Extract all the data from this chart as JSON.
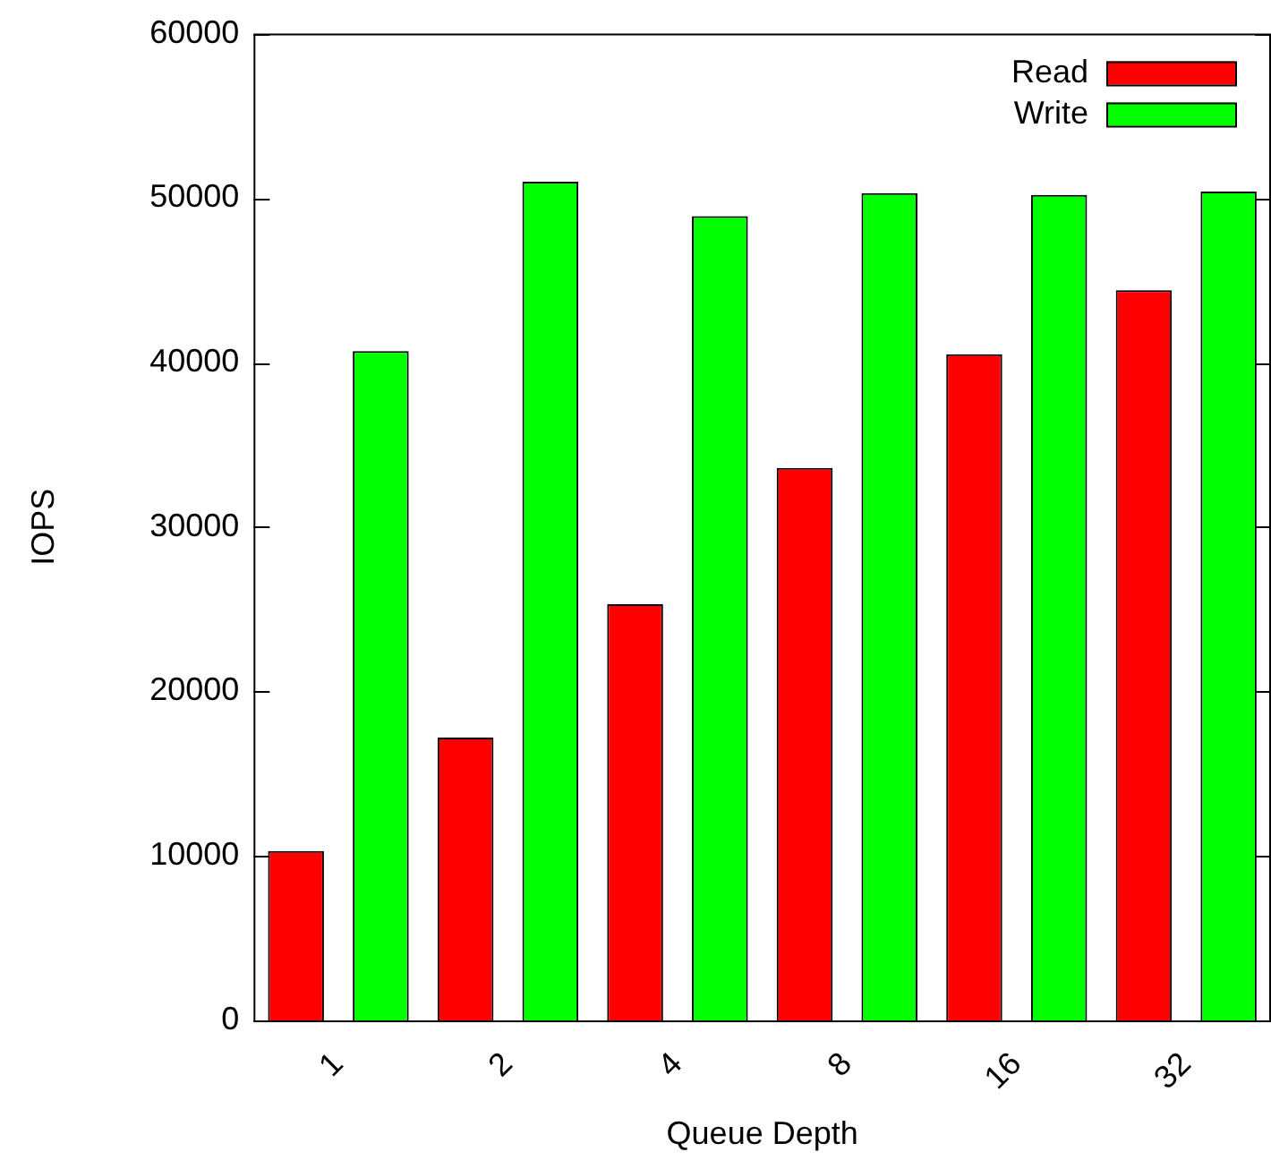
{
  "chart_data": {
    "type": "bar",
    "xlabel": "Queue Depth",
    "ylabel": "IOPS",
    "categories": [
      "1",
      "2",
      "4",
      "8",
      "16",
      "32"
    ],
    "series": [
      {
        "name": "Read",
        "color": "#ff0000",
        "values": [
          10300,
          17200,
          25300,
          33600,
          40500,
          44400
        ]
      },
      {
        "name": "Write",
        "color": "#00ff00",
        "values": [
          40700,
          51000,
          48900,
          50300,
          50200,
          50400
        ]
      }
    ],
    "ylim": [
      0,
      60000
    ],
    "yticks": [
      0,
      10000,
      20000,
      30000,
      40000,
      50000,
      60000
    ],
    "grid": false,
    "legend": "top right"
  }
}
